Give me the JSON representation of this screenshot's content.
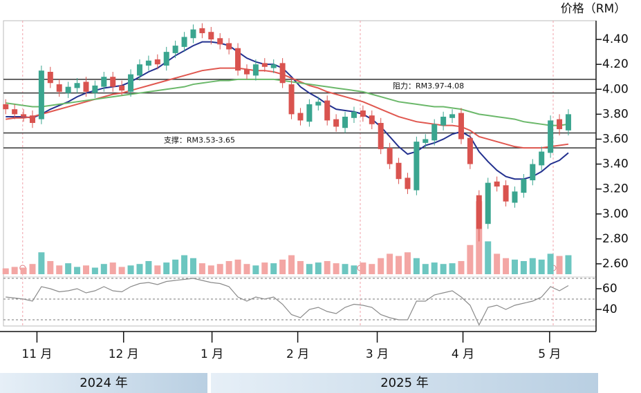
{
  "chart_data": {
    "type": "candlestick",
    "axis_title": "价格（RM）",
    "years": [
      "2024 年",
      "2025 年"
    ],
    "xlim": [
      -0.25,
      66.1
    ],
    "xticks": [
      {
        "value": 3.5,
        "label": "11 月"
      },
      {
        "value": 13.2,
        "label": "12 月"
      },
      {
        "value": 23.1,
        "label": "1 月"
      },
      {
        "value": 32.7,
        "label": "2 月"
      },
      {
        "value": 41.6,
        "label": "3 月"
      },
      {
        "value": 51.2,
        "label": "4 月"
      },
      {
        "value": 60.9,
        "label": "5 月"
      }
    ],
    "ylim": [
      2.5,
      4.55
    ],
    "yticks": [
      {
        "value": 4.4,
        "label": "4.40"
      },
      {
        "value": 4.2,
        "label": "4.20"
      },
      {
        "value": 4.0,
        "label": "4.00"
      },
      {
        "value": 3.8,
        "label": "3.80"
      },
      {
        "value": 3.6,
        "label": "3.60"
      },
      {
        "value": 3.4,
        "label": "3.40"
      },
      {
        "value": 3.2,
        "label": "3.20"
      },
      {
        "value": 3.0,
        "label": "3.00"
      },
      {
        "value": 2.8,
        "label": "2.80"
      },
      {
        "value": 2.6,
        "label": "2.60"
      }
    ],
    "rise_color": "#3aa58f",
    "fall_color": "#d9534f",
    "open": [
      3.88,
      3.84,
      3.8,
      3.79,
      3.76,
      4.14,
      4.04,
      3.97,
      4.01,
      4.06,
      3.97,
      4.02,
      4.1,
      4.03,
      3.98,
      4.11,
      4.19,
      4.24,
      4.19,
      4.29,
      4.34,
      4.41,
      4.49,
      4.46,
      4.41,
      4.37,
      4.33,
      4.16,
      4.11,
      4.21,
      4.17,
      4.21,
      4.04,
      3.81,
      3.74,
      3.87,
      3.91,
      3.76,
      3.69,
      3.77,
      3.83,
      3.79,
      3.73,
      3.53,
      3.41,
      3.29,
      3.19,
      3.57,
      3.59,
      3.71,
      3.77,
      3.81,
      3.61,
      3.15,
      2.92,
      3.26,
      3.23,
      3.09,
      3.17,
      3.27,
      3.39,
      3.49,
      3.76,
      3.67
    ],
    "high": [
      3.92,
      3.88,
      3.84,
      3.83,
      4.19,
      4.18,
      4.08,
      4.06,
      4.09,
      4.1,
      4.07,
      4.14,
      4.14,
      4.07,
      4.16,
      4.24,
      4.27,
      4.28,
      4.34,
      4.39,
      4.46,
      4.52,
      4.53,
      4.5,
      4.45,
      4.41,
      4.37,
      4.2,
      4.24,
      4.25,
      4.24,
      4.25,
      4.08,
      3.85,
      3.92,
      3.94,
      3.95,
      3.8,
      3.82,
      3.86,
      3.87,
      3.83,
      3.77,
      3.57,
      3.45,
      3.33,
      3.62,
      3.64,
      3.76,
      3.82,
      3.84,
      3.85,
      3.65,
      3.19,
      3.29,
      3.3,
      3.27,
      3.22,
      3.32,
      3.44,
      3.54,
      3.79,
      3.8,
      3.84
    ],
    "low": [
      3.8,
      3.76,
      3.74,
      3.69,
      3.72,
      4.01,
      3.94,
      3.93,
      3.97,
      3.94,
      3.93,
      3.98,
      3.98,
      3.95,
      3.94,
      4.07,
      4.15,
      4.16,
      4.15,
      4.25,
      4.3,
      4.37,
      4.41,
      4.36,
      4.32,
      4.28,
      4.11,
      4.08,
      4.07,
      4.14,
      4.13,
      4.01,
      3.76,
      3.71,
      3.7,
      3.83,
      3.71,
      3.66,
      3.65,
      3.73,
      3.74,
      3.68,
      3.48,
      3.36,
      3.24,
      3.16,
      3.15,
      3.53,
      3.55,
      3.67,
      3.73,
      3.56,
      3.36,
      2.78,
      2.88,
      3.18,
      3.06,
      3.05,
      3.13,
      3.23,
      3.35,
      3.45,
      3.63,
      3.63
    ],
    "close": [
      3.84,
      3.8,
      3.78,
      3.73,
      4.15,
      4.05,
      3.98,
      4.02,
      4.05,
      3.98,
      4.03,
      4.1,
      4.02,
      3.99,
      4.12,
      4.2,
      4.23,
      4.2,
      4.3,
      4.35,
      4.42,
      4.48,
      4.45,
      4.4,
      4.36,
      4.32,
      4.15,
      4.12,
      4.2,
      4.18,
      4.2,
      4.05,
      3.8,
      3.75,
      3.88,
      3.9,
      3.75,
      3.7,
      3.78,
      3.82,
      3.78,
      3.72,
      3.52,
      3.4,
      3.28,
      3.2,
      3.58,
      3.6,
      3.72,
      3.78,
      3.8,
      3.6,
      3.4,
      2.88,
      3.25,
      3.22,
      3.1,
      3.18,
      3.28,
      3.4,
      3.5,
      3.75,
      3.68,
      3.8
    ],
    "series": [
      {
        "color": "#23318f",
        "values": [
          3.78,
          3.78,
          3.78,
          3.77,
          3.8,
          3.84,
          3.87,
          3.9,
          3.94,
          3.97,
          3.99,
          4.01,
          4.02,
          4.03,
          4.06,
          4.1,
          4.14,
          4.17,
          4.22,
          4.27,
          4.31,
          4.35,
          4.38,
          4.38,
          4.37,
          4.35,
          4.3,
          4.25,
          4.22,
          4.2,
          4.2,
          4.17,
          4.1,
          4.02,
          3.97,
          3.93,
          3.88,
          3.84,
          3.83,
          3.82,
          3.8,
          3.76,
          3.7,
          3.62,
          3.54,
          3.48,
          3.5,
          3.55,
          3.57,
          3.6,
          3.64,
          3.66,
          3.62,
          3.5,
          3.42,
          3.35,
          3.3,
          3.28,
          3.28,
          3.3,
          3.34,
          3.4,
          3.43,
          3.49
        ]
      },
      {
        "color": "#e0574f",
        "values": [
          3.76,
          3.77,
          3.77,
          3.78,
          3.8,
          3.82,
          3.84,
          3.86,
          3.88,
          3.9,
          3.92,
          3.94,
          3.96,
          3.97,
          3.99,
          4.01,
          4.03,
          4.05,
          4.07,
          4.09,
          4.11,
          4.13,
          4.15,
          4.16,
          4.17,
          4.17,
          4.17,
          4.16,
          4.15,
          4.15,
          4.14,
          4.12,
          4.09,
          4.06,
          4.03,
          4.01,
          3.98,
          3.96,
          3.94,
          3.92,
          3.9,
          3.87,
          3.84,
          3.81,
          3.78,
          3.76,
          3.74,
          3.73,
          3.72,
          3.71,
          3.71,
          3.7,
          3.67,
          3.62,
          3.6,
          3.58,
          3.56,
          3.54,
          3.53,
          3.53,
          3.53,
          3.54,
          3.55,
          3.56
        ]
      },
      {
        "color": "#6bb86a",
        "values": [
          3.89,
          3.88,
          3.87,
          3.86,
          3.86,
          3.87,
          3.88,
          3.89,
          3.9,
          3.91,
          3.92,
          3.93,
          3.94,
          3.95,
          3.96,
          3.97,
          3.98,
          3.99,
          4.0,
          4.01,
          4.02,
          4.04,
          4.05,
          4.06,
          4.07,
          4.07,
          4.08,
          4.08,
          4.08,
          4.08,
          4.08,
          4.07,
          4.06,
          4.05,
          4.04,
          4.03,
          4.02,
          4.01,
          4.0,
          3.99,
          3.98,
          3.96,
          3.94,
          3.92,
          3.9,
          3.89,
          3.88,
          3.87,
          3.86,
          3.86,
          3.85,
          3.84,
          3.82,
          3.8,
          3.79,
          3.78,
          3.77,
          3.76,
          3.74,
          3.73,
          3.72,
          3.71,
          3.71,
          3.72
        ]
      }
    ],
    "volume": {
      "axis": "y2",
      "rise_color": "#6cc6c0",
      "fall_color": "#f3a6a4",
      "values": [
        8,
        10,
        9,
        14,
        30,
        18,
        12,
        15,
        10,
        12,
        9,
        14,
        16,
        10,
        12,
        14,
        18,
        12,
        16,
        20,
        26,
        22,
        15,
        12,
        14,
        18,
        20,
        14,
        12,
        16,
        15,
        20,
        26,
        18,
        14,
        16,
        18,
        15,
        14,
        12,
        16,
        14,
        22,
        28,
        25,
        30,
        22,
        14,
        16,
        14,
        15,
        18,
        40,
        100,
        45,
        28,
        22,
        20,
        18,
        22,
        20,
        28,
        25,
        26
      ]
    },
    "y2lim": [
      0,
      350
    ],
    "rsi": {
      "color": "#8a8a8a",
      "ylim": [
        24,
        72
      ],
      "yticks": [
        60,
        40
      ],
      "levels": [
        70,
        50,
        30
      ],
      "values": [
        52,
        51,
        50,
        48,
        62,
        60,
        57,
        58,
        60,
        56,
        58,
        62,
        58,
        57,
        62,
        65,
        66,
        64,
        67,
        68,
        69,
        70,
        68,
        66,
        65,
        62,
        52,
        48,
        52,
        50,
        52,
        45,
        35,
        32,
        40,
        42,
        38,
        36,
        42,
        45,
        44,
        42,
        35,
        32,
        30,
        30,
        48,
        48,
        54,
        56,
        58,
        52,
        44,
        25,
        42,
        44,
        40,
        44,
        46,
        48,
        52,
        62,
        58,
        63
      ]
    },
    "levels": [
      {
        "values": [
          4.08,
          3.97
        ],
        "label": "阻力：RM3.97-4.08"
      },
      {
        "values": [
          3.65,
          3.53
        ],
        "label": "支撑：RM3.53-3.65"
      }
    ],
    "event_markers": [
      1.9,
      39.7,
      61.3
    ]
  }
}
